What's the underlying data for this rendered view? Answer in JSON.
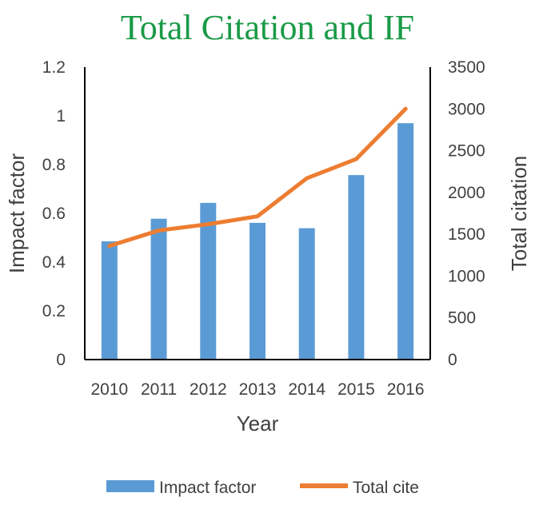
{
  "chart_data": {
    "type": "bar+line",
    "title": "Total Citation and IF",
    "xlabel": "Year",
    "ylabel_left": "Impact factor",
    "ylabel_right": "Total citation",
    "categories": [
      "2010",
      "2011",
      "2012",
      "2013",
      "2014",
      "2015",
      "2016"
    ],
    "ylim_left": [
      0,
      1.2
    ],
    "ylim_right": [
      0,
      3500
    ],
    "yticks_left": [
      "0",
      "0.2",
      "0.4",
      "0.6",
      "0.8",
      "1",
      "1.2"
    ],
    "yticks_right": [
      "0",
      "500",
      "1000",
      "1500",
      "2000",
      "2500",
      "3000",
      "3500"
    ],
    "series": [
      {
        "name": "Impact factor",
        "type": "bar",
        "axis": "left",
        "color": "#5b9bd5",
        "values": [
          0.485,
          0.578,
          0.643,
          0.561,
          0.539,
          0.757,
          0.97
        ]
      },
      {
        "name": "Total cite",
        "type": "line",
        "axis": "right",
        "color": "#ed7d31",
        "values": [
          1360,
          1545,
          1620,
          1715,
          2170,
          2400,
          3000
        ]
      }
    ],
    "grid": false,
    "legend_position": "bottom"
  }
}
